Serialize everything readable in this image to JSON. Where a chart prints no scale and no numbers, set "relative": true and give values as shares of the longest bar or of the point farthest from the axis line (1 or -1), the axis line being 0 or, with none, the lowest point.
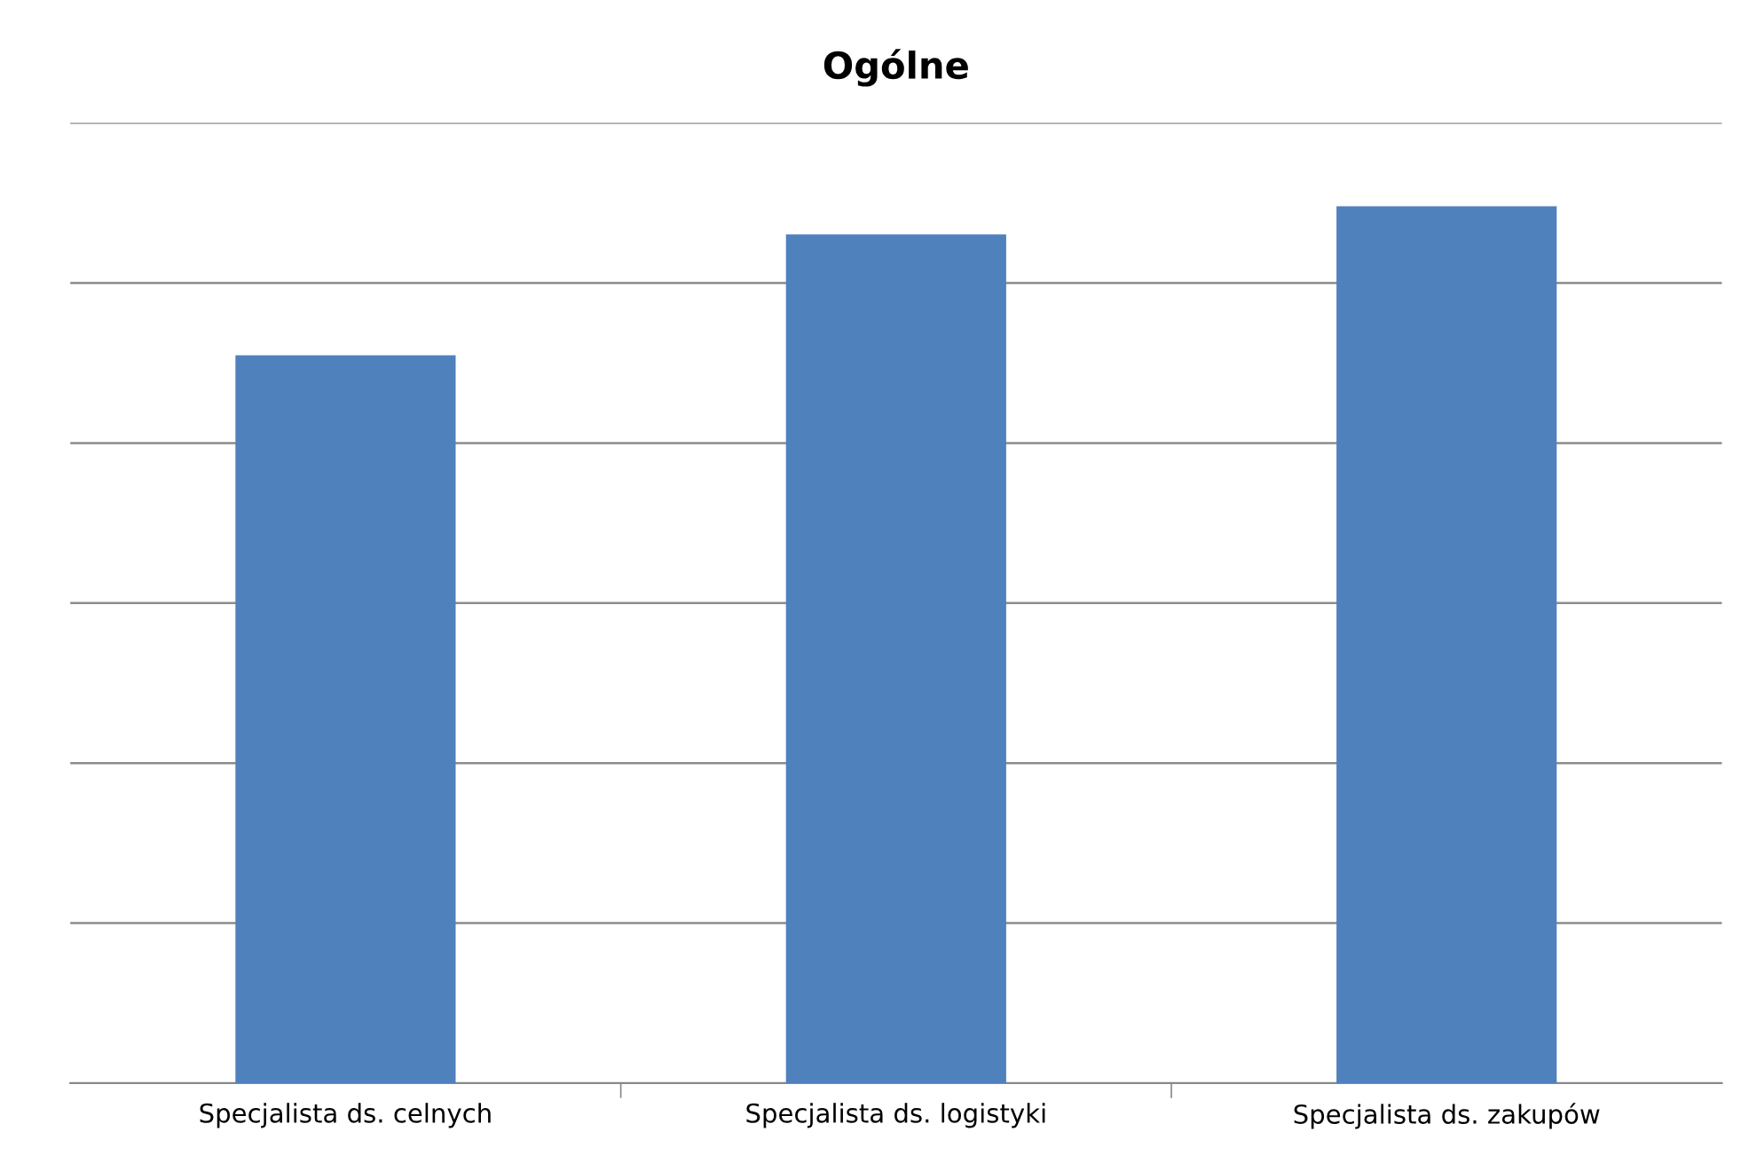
{
  "chart_data": {
    "type": "bar",
    "title": "Ogólne",
    "categories": [
      "Specjalista ds. celnych",
      "Specjalista ds. logistyki",
      "Specjalista ds. zakupów"
    ],
    "values": [
      0.83,
      0.968,
      1
    ],
    "color": "#4f81bd",
    "relative": true,
    "grid": "y"
  }
}
